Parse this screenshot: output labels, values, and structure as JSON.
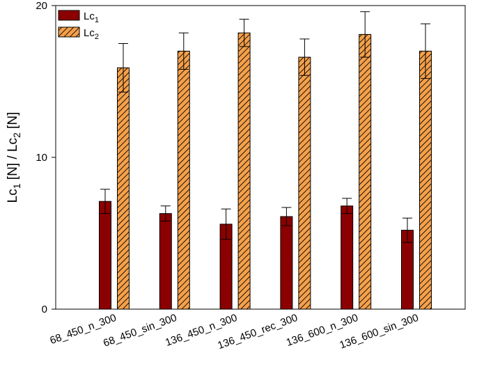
{
  "chart_data": {
    "type": "bar",
    "categories": [
      "68_450_n_300",
      "68_450_sin_300",
      "136_450_n_300",
      "136_450_rec_300",
      "136_600_n_300",
      "136_600_sin_300"
    ],
    "series": [
      {
        "name": "Lc",
        "name_sub": "1",
        "values": [
          7.1,
          6.3,
          5.6,
          6.1,
          6.8,
          5.2
        ],
        "errors": [
          0.8,
          0.5,
          1.0,
          0.6,
          0.5,
          0.8
        ],
        "color": "#8b0000",
        "hatched": false
      },
      {
        "name": "Lc",
        "name_sub": "2",
        "values": [
          15.9,
          17.0,
          18.2,
          16.6,
          18.1,
          17.0
        ],
        "errors": [
          1.6,
          1.2,
          0.9,
          1.2,
          1.5,
          1.8
        ],
        "color": "#f5a04a",
        "hatched": true
      }
    ],
    "title": "",
    "xlabel": "",
    "ylabel": {
      "p1": "Lc",
      "s1": "1",
      "p2": " [N] / Lc",
      "s2": "2",
      "p3": " [N]"
    },
    "ylim": [
      0,
      20
    ],
    "yticks": [
      0,
      10,
      20
    ],
    "grid": false,
    "legend": "top-left"
  }
}
